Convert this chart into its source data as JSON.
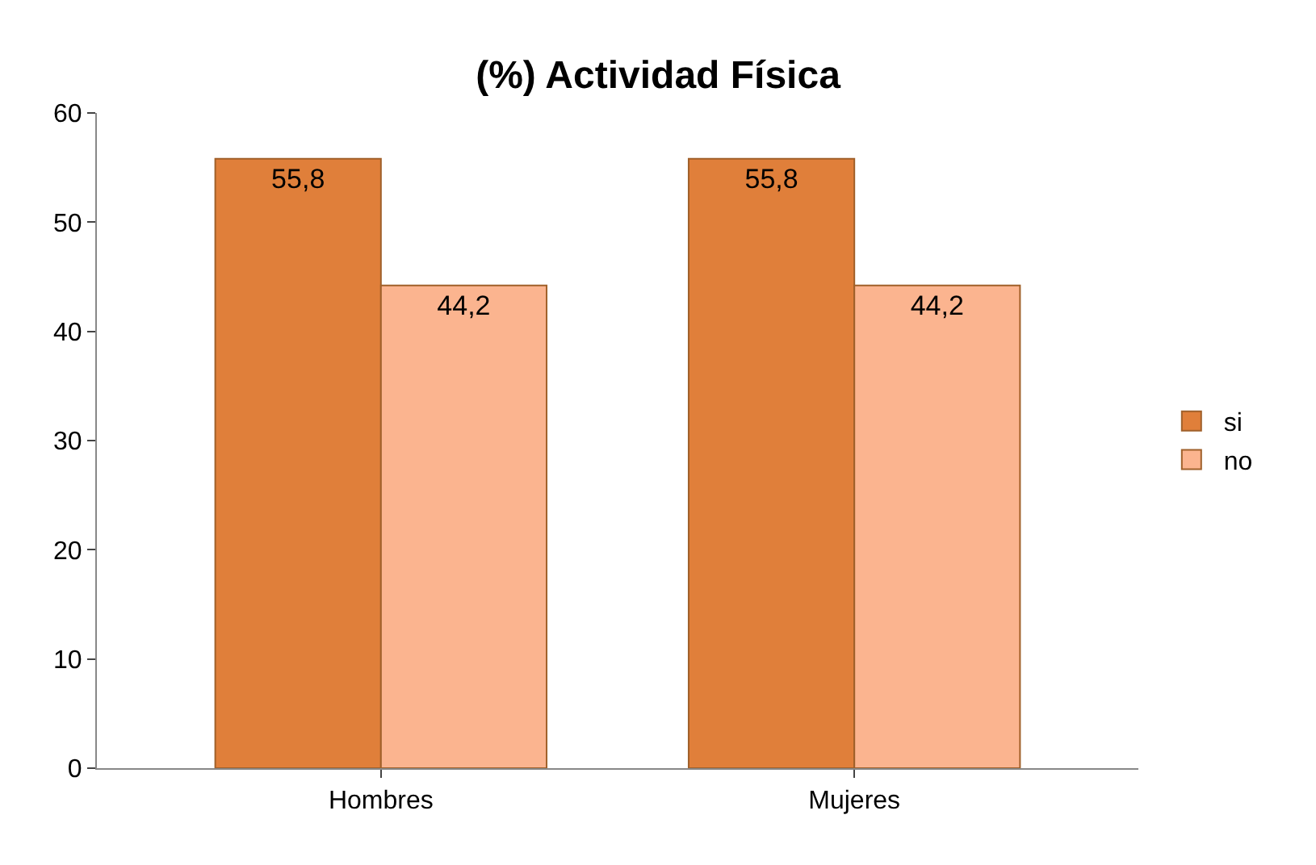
{
  "chart_data": {
    "type": "bar",
    "title": "(%) Actividad Física",
    "categories": [
      "Hombres",
      "Mujeres"
    ],
    "series": [
      {
        "name": "si",
        "color": "#e07f3a",
        "values": [
          55.8,
          55.8
        ],
        "value_labels": [
          "55,8",
          "55,8"
        ]
      },
      {
        "name": "no",
        "color": "#fbb48f",
        "values": [
          44.2,
          44.2
        ],
        "value_labels": [
          "44,2",
          "44,2"
        ]
      }
    ],
    "ylim": [
      0,
      60
    ],
    "yticks": [
      0,
      10,
      20,
      30,
      40,
      50,
      60
    ],
    "grid": false,
    "legend": "right"
  }
}
